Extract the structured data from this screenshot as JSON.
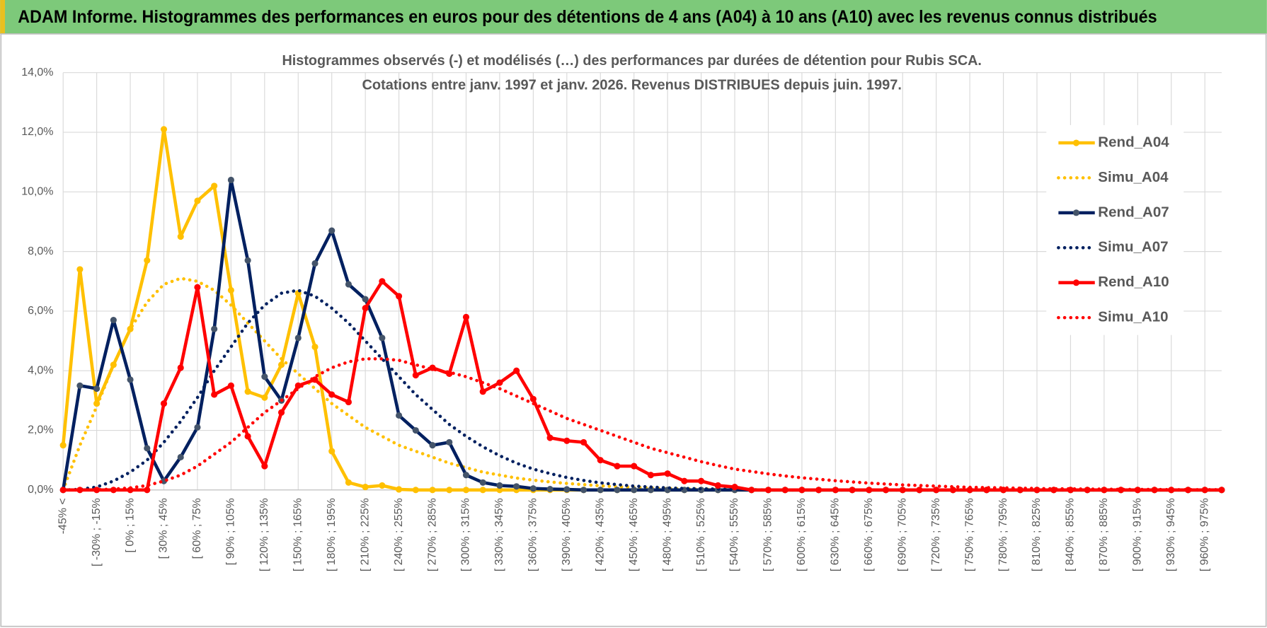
{
  "header": {
    "title": "ADAM Informe. Histogrammes des performances en euros pour des détentions de 4 ans (A04) à 10 ans (A10) avec les revenus connus distribués"
  },
  "chart_data": {
    "type": "line",
    "title": [
      "Histogrammes observés (-) et modélisés (…) des performances par durées de détention pour Rubis SCA.",
      "Cotations entre janv. 1997 et janv. 2026. Revenus DISTRIBUES depuis juin. 1997."
    ],
    "categories": [
      "-45% <",
      null,
      "[ -30% ; -15%",
      null,
      "[ 0% ; 15%",
      null,
      "[ 30% ; 45%",
      null,
      "[ 60% ; 75%",
      null,
      "[ 90% ; 105%",
      null,
      "[ 120% ; 135%",
      null,
      "[ 150% ; 165%",
      null,
      "[ 180% ; 195%",
      null,
      "[ 210% ; 225%",
      null,
      "[ 240% ; 255%",
      null,
      "[ 270% ; 285%",
      null,
      "[ 300% ; 315%",
      null,
      "[ 330% ; 345%",
      null,
      "[ 360% ; 375%",
      null,
      "[ 390% ; 405%",
      null,
      "[ 420% ; 435%",
      null,
      "[ 450% ; 465%",
      null,
      "[ 480% ; 495%",
      null,
      "[ 510% ; 525%",
      null,
      "[ 540% ; 555%",
      null,
      "[ 570% ; 585%",
      null,
      "[ 600% ; 615%",
      null,
      "[ 630% ; 645%",
      null,
      "[ 660% ; 675%",
      null,
      "[ 690% ; 705%",
      null,
      "[ 720% ; 735%",
      null,
      "[ 750% ; 765%",
      null,
      "[ 780% ; 795%",
      null,
      "[ 810% ; 825%",
      null,
      "[ 840% ; 855%",
      null,
      "[ 870% ; 885%",
      null,
      "[ 900% ; 915%",
      null,
      "[ 930% ; 945%",
      null,
      "[ 960% ; 975%",
      null
    ],
    "ylim": [
      0,
      14
    ],
    "yticks": [
      {
        "value": 0,
        "label": "0,0%"
      },
      {
        "value": 2,
        "label": "2,0%"
      },
      {
        "value": 4,
        "label": "4,0%"
      },
      {
        "value": 6,
        "label": "6,0%"
      },
      {
        "value": 8,
        "label": "8,0%"
      },
      {
        "value": 10,
        "label": "10,0%"
      },
      {
        "value": 12,
        "label": "12,0%"
      },
      {
        "value": 14,
        "label": "14,0%"
      }
    ],
    "grid": true,
    "legend": "right",
    "series": [
      {
        "name": "Rend_A04",
        "color": "#ffc000",
        "line_style": "solid",
        "markers": true,
        "values": [
          1.5,
          7.4,
          2.9,
          4.2,
          5.4,
          7.7,
          12.1,
          8.5,
          9.7,
          10.2,
          6.7,
          3.3,
          3.1,
          4.2,
          6.6,
          4.8,
          1.3,
          0.25,
          0.1,
          0.15,
          0.02,
          0,
          0,
          0,
          0,
          0,
          0,
          0,
          0,
          0,
          0,
          0,
          0,
          0,
          0,
          0,
          0,
          0,
          0,
          0,
          0,
          0,
          0,
          0,
          0,
          0,
          0,
          0,
          0,
          0,
          0,
          0,
          0,
          0,
          0,
          0,
          0,
          0,
          0,
          0,
          0,
          0,
          0,
          0,
          0,
          0,
          0,
          0,
          0,
          0
        ]
      },
      {
        "name": "Simu_A04",
        "color": "#ffc000",
        "line_style": "dotted",
        "markers": false,
        "values": [
          0,
          1.5,
          2.8,
          4.2,
          5.4,
          6.3,
          6.9,
          7.1,
          7.0,
          6.7,
          6.2,
          5.6,
          5.0,
          4.4,
          3.9,
          3.4,
          2.9,
          2.5,
          2.1,
          1.8,
          1.5,
          1.3,
          1.1,
          0.9,
          0.75,
          0.6,
          0.5,
          0.4,
          0.33,
          0.27,
          0.22,
          0.18,
          0.14,
          0.11,
          0.09,
          0.07,
          0.05,
          0.04,
          0.03,
          0.02,
          0.02,
          0.01,
          0,
          0,
          0,
          0,
          0,
          0,
          0,
          0,
          0,
          0,
          0,
          0,
          0,
          0,
          0,
          0,
          0,
          0,
          0,
          0,
          0,
          0,
          0,
          0,
          0,
          0,
          0,
          0
        ]
      },
      {
        "name": "Rend_A07",
        "color": "#002060",
        "line_style": "solid",
        "markers": true,
        "values": [
          0,
          3.5,
          3.4,
          5.7,
          3.7,
          1.4,
          0.3,
          1.1,
          2.1,
          5.4,
          10.4,
          7.7,
          3.8,
          3.0,
          5.1,
          7.6,
          8.7,
          6.9,
          6.4,
          5.1,
          2.5,
          2.0,
          1.5,
          1.6,
          0.5,
          0.25,
          0.15,
          0.12,
          0.05,
          0.03,
          0.02,
          0,
          0,
          0,
          0,
          0,
          0,
          0,
          0,
          0,
          0,
          0,
          0,
          0,
          0,
          0,
          0,
          0,
          0,
          0,
          0,
          0,
          0,
          0,
          0,
          0,
          0,
          0,
          0,
          0,
          0,
          0,
          0,
          0,
          0,
          0,
          0,
          0,
          0,
          0
        ]
      },
      {
        "name": "Simu_A07",
        "color": "#002060",
        "line_style": "dotted",
        "markers": false,
        "values": [
          0,
          0.02,
          0.1,
          0.3,
          0.6,
          1.0,
          1.6,
          2.3,
          3.1,
          4.0,
          4.8,
          5.6,
          6.2,
          6.6,
          6.7,
          6.5,
          6.1,
          5.6,
          5.0,
          4.4,
          3.8,
          3.2,
          2.7,
          2.2,
          1.8,
          1.45,
          1.15,
          0.9,
          0.7,
          0.55,
          0.42,
          0.32,
          0.24,
          0.18,
          0.13,
          0.1,
          0.07,
          0.05,
          0.04,
          0.03,
          0.02,
          0.01,
          0,
          0,
          0,
          0,
          0,
          0,
          0,
          0,
          0,
          0,
          0,
          0,
          0,
          0,
          0,
          0,
          0,
          0,
          0,
          0,
          0,
          0,
          0,
          0,
          0,
          0,
          0,
          0
        ]
      },
      {
        "name": "Rend_A10",
        "color": "#ff0000",
        "line_style": "solid",
        "markers": true,
        "values": [
          0,
          0,
          0,
          0,
          0,
          0,
          2.9,
          4.1,
          6.8,
          3.2,
          3.5,
          1.8,
          0.8,
          2.6,
          3.5,
          3.7,
          3.2,
          2.95,
          6.1,
          7.0,
          6.5,
          3.85,
          4.1,
          3.9,
          5.8,
          3.3,
          3.6,
          4.0,
          3.05,
          1.75,
          1.65,
          1.6,
          1.0,
          0.8,
          0.8,
          0.5,
          0.55,
          0.3,
          0.3,
          0.15,
          0.1,
          0,
          0,
          0,
          0,
          0,
          0,
          0,
          0,
          0,
          0,
          0,
          0,
          0,
          0,
          0,
          0,
          0,
          0,
          0,
          0,
          0,
          0,
          0,
          0,
          0,
          0,
          0,
          0,
          0
        ]
      },
      {
        "name": "Simu_A10",
        "color": "#ff0000",
        "line_style": "dotted",
        "markers": false,
        "values": [
          0,
          0,
          0.01,
          0.03,
          0.07,
          0.15,
          0.3,
          0.5,
          0.8,
          1.2,
          1.6,
          2.1,
          2.6,
          3.0,
          3.4,
          3.8,
          4.1,
          4.3,
          4.4,
          4.4,
          4.35,
          4.2,
          4.05,
          3.95,
          3.8,
          3.6,
          3.4,
          3.15,
          2.9,
          2.65,
          2.4,
          2.2,
          2.0,
          1.8,
          1.6,
          1.4,
          1.25,
          1.1,
          0.95,
          0.82,
          0.7,
          0.62,
          0.54,
          0.47,
          0.41,
          0.36,
          0.31,
          0.27,
          0.23,
          0.2,
          0.17,
          0.15,
          0.13,
          0.11,
          0.09,
          0.08,
          0.07,
          0.06,
          0.05,
          0.04,
          0.04,
          0.03,
          0.03,
          0.02,
          0.02,
          0.02,
          0.01,
          0.01,
          0.01,
          0.01
        ]
      }
    ]
  }
}
